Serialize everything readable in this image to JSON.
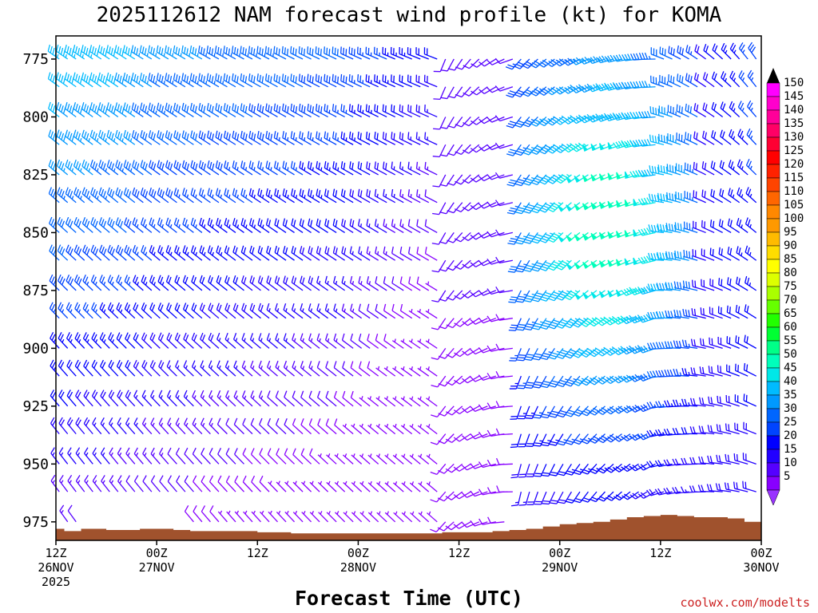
{
  "chart_data": {
    "type": "wind-profile",
    "title": "2025112612 NAM forecast wind profile (kt) for KOMA",
    "xlabel": "Forecast Time (UTC)",
    "ylabel": "",
    "y_ticks": [
      "775",
      "800",
      "825",
      "850",
      "875",
      "900",
      "925",
      "950",
      "975"
    ],
    "y_values": [
      775,
      800,
      825,
      850,
      875,
      900,
      925,
      950,
      975
    ],
    "ylim": [
      765,
      983
    ],
    "y_reversed": true,
    "x_ticks": [
      {
        "hour": 0,
        "line1": "12Z",
        "line2": "26NOV",
        "line3": "2025"
      },
      {
        "hour": 12,
        "line1": "00Z",
        "line2": "27NOV",
        "line3": ""
      },
      {
        "hour": 24,
        "line1": "12Z",
        "line2": "",
        "line3": ""
      },
      {
        "hour": 36,
        "line1": "00Z",
        "line2": "28NOV",
        "line3": ""
      },
      {
        "hour": 48,
        "line1": "12Z",
        "line2": "",
        "line3": ""
      },
      {
        "hour": 60,
        "line1": "00Z",
        "line2": "29NOV",
        "line3": ""
      },
      {
        "hour": 72,
        "line1": "12Z",
        "line2": "",
        "line3": ""
      },
      {
        "hour": 84,
        "line1": "00Z",
        "line2": "30NOV",
        "line3": ""
      }
    ],
    "xlim": [
      0,
      84
    ],
    "colorbar": {
      "labels": [
        "150",
        "145",
        "140",
        "135",
        "130",
        "125",
        "120",
        "115",
        "110",
        "105",
        "100",
        "95",
        "90",
        "85",
        "80",
        "75",
        "70",
        "65",
        "60",
        "55",
        "50",
        "45",
        "40",
        "35",
        "30",
        "25",
        "20",
        "15",
        "10",
        "5"
      ],
      "colors": [
        "#ff00ff",
        "#ff00cc",
        "#ff0099",
        "#ff0066",
        "#ff0033",
        "#ff0000",
        "#ff2200",
        "#ff4400",
        "#ff6600",
        "#ff8800",
        "#ff9900",
        "#ffbb00",
        "#ffdd00",
        "#ffff00",
        "#ddff00",
        "#aaff00",
        "#66ff00",
        "#22ff00",
        "#00ff33",
        "#00ff88",
        "#00ffbb",
        "#00e8e8",
        "#00bbff",
        "#0099ff",
        "#0066ff",
        "#0044ff",
        "#0000ff",
        "#2200ff",
        "#5500ff",
        "#8800ff"
      ],
      "top_arrow_color": "#000000",
      "bottom_arrow_color": "#9933ff"
    },
    "terrain_color": "#a0522d",
    "terrain_pressure": [
      [
        0,
        978
      ],
      [
        1,
        979
      ],
      [
        2,
        979
      ],
      [
        3,
        978
      ],
      [
        4,
        978
      ],
      [
        6,
        978.5
      ],
      [
        8,
        978.5
      ],
      [
        10,
        978
      ],
      [
        12,
        978
      ],
      [
        14,
        978.5
      ],
      [
        16,
        979
      ],
      [
        18,
        979
      ],
      [
        20,
        979
      ],
      [
        22,
        979
      ],
      [
        24,
        979.5
      ],
      [
        26,
        979.5
      ],
      [
        28,
        980
      ],
      [
        30,
        980
      ],
      [
        32,
        980
      ],
      [
        34,
        980
      ],
      [
        36,
        980
      ],
      [
        38,
        980
      ],
      [
        40,
        980
      ],
      [
        42,
        980
      ],
      [
        44,
        980
      ],
      [
        46,
        979.5
      ],
      [
        48,
        979.5
      ],
      [
        50,
        979.5
      ],
      [
        52,
        979
      ],
      [
        54,
        978.5
      ],
      [
        56,
        978
      ],
      [
        58,
        977
      ],
      [
        60,
        976
      ],
      [
        62,
        975.5
      ],
      [
        64,
        975
      ],
      [
        66,
        974
      ],
      [
        68,
        973
      ],
      [
        70,
        972.5
      ],
      [
        72,
        972
      ],
      [
        74,
        972.5
      ],
      [
        76,
        973
      ],
      [
        78,
        973
      ],
      [
        80,
        973.5
      ],
      [
        82,
        975
      ],
      [
        84,
        976.5
      ]
    ],
    "wind_grid": {
      "pressure_levels": [
        775,
        787,
        800,
        812,
        825,
        837,
        850,
        862,
        875,
        887,
        900,
        912,
        925,
        937,
        950,
        962,
        975
      ],
      "time_step_hours": 1,
      "description_units": "speed kt, direction deg"
    }
  },
  "credit": "coolwx.com/modelts"
}
